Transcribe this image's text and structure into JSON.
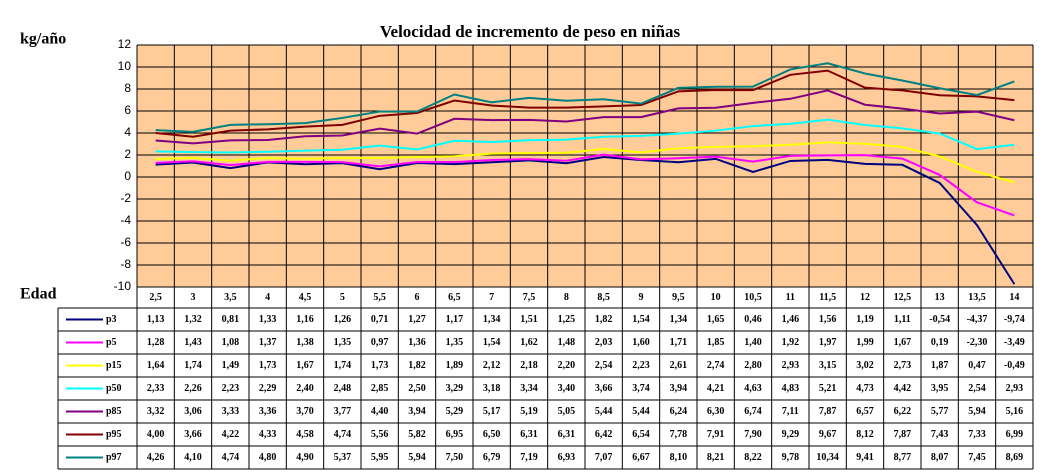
{
  "chart_data": {
    "type": "line",
    "title": "Velocidad de incremento de peso en niñas",
    "y_label": "kg/año",
    "x_label": "Edad",
    "categories": [
      "2,5",
      "3",
      "3,5",
      "4",
      "4,5",
      "5",
      "5,5",
      "6",
      "6,5",
      "7",
      "7,5",
      "8",
      "8,5",
      "9",
      "9,5",
      "10",
      "10,5",
      "11",
      "11,5",
      "12",
      "12,5",
      "13",
      "13,5",
      "14"
    ],
    "series": [
      {
        "name": "p3",
        "color": "#000080",
        "values": [
          1.13,
          1.32,
          0.81,
          1.33,
          1.16,
          1.26,
          0.71,
          1.27,
          1.17,
          1.34,
          1.51,
          1.25,
          1.82,
          1.54,
          1.34,
          1.65,
          0.46,
          1.46,
          1.56,
          1.19,
          1.11,
          -0.54,
          -4.37,
          -9.74
        ],
        "value_labels": [
          "1,13",
          "1,32",
          "0,81",
          "1,33",
          "1,16",
          "1,26",
          "0,71",
          "1,27",
          "1,17",
          "1,34",
          "1,51",
          "1,25",
          "1,82",
          "1,54",
          "1,34",
          "1,65",
          "0,46",
          "1,46",
          "1,56",
          "1,19",
          "1,11",
          "-0,54",
          "-4,37",
          "-9,74"
        ]
      },
      {
        "name": "p5",
        "color": "#ff00ff",
        "values": [
          1.28,
          1.43,
          1.08,
          1.37,
          1.38,
          1.35,
          0.97,
          1.36,
          1.35,
          1.54,
          1.62,
          1.48,
          2.03,
          1.6,
          1.71,
          1.85,
          1.4,
          1.92,
          1.97,
          1.99,
          1.67,
          0.19,
          -2.3,
          -3.49
        ],
        "value_labels": [
          "1,28",
          "1,43",
          "1,08",
          "1,37",
          "1,38",
          "1,35",
          "0,97",
          "1,36",
          "1,35",
          "1,54",
          "1,62",
          "1,48",
          "2,03",
          "1,60",
          "1,71",
          "1,85",
          "1,40",
          "1,92",
          "1,97",
          "1,99",
          "1,67",
          "0,19",
          "-2,30",
          "-3,49"
        ]
      },
      {
        "name": "p15",
        "color": "#ffff00",
        "values": [
          1.64,
          1.74,
          1.49,
          1.73,
          1.67,
          1.74,
          1.73,
          1.82,
          1.89,
          2.12,
          2.18,
          2.2,
          2.54,
          2.23,
          2.61,
          2.74,
          2.8,
          2.93,
          3.15,
          3.02,
          2.73,
          1.87,
          0.47,
          -0.49
        ],
        "value_labels": [
          "1,64",
          "1,74",
          "1,49",
          "1,73",
          "1,67",
          "1,74",
          "1,73",
          "1,82",
          "1,89",
          "2,12",
          "2,18",
          "2,20",
          "2,54",
          "2,23",
          "2,61",
          "2,74",
          "2,80",
          "2,93",
          "3,15",
          "3,02",
          "2,73",
          "1,87",
          "0,47",
          "-0,49"
        ]
      },
      {
        "name": "p50",
        "color": "#00ffff",
        "values": [
          2.33,
          2.26,
          2.23,
          2.29,
          2.4,
          2.48,
          2.85,
          2.5,
          3.29,
          3.18,
          3.34,
          3.4,
          3.66,
          3.74,
          3.94,
          4.21,
          4.63,
          4.83,
          5.21,
          4.73,
          4.42,
          3.95,
          2.54,
          2.93
        ],
        "value_labels": [
          "2,33",
          "2,26",
          "2,23",
          "2,29",
          "2,40",
          "2,48",
          "2,85",
          "2,50",
          "3,29",
          "3,18",
          "3,34",
          "3,40",
          "3,66",
          "3,74",
          "3,94",
          "4,21",
          "4,63",
          "4,83",
          "5,21",
          "4,73",
          "4,42",
          "3,95",
          "2,54",
          "2,93"
        ]
      },
      {
        "name": "p85",
        "color": "#800080",
        "values": [
          3.32,
          3.06,
          3.33,
          3.36,
          3.7,
          3.77,
          4.4,
          3.94,
          5.29,
          5.17,
          5.19,
          5.05,
          5.44,
          5.44,
          6.24,
          6.3,
          6.74,
          7.11,
          7.87,
          6.57,
          6.22,
          5.77,
          5.94,
          5.16
        ],
        "value_labels": [
          "3,32",
          "3,06",
          "3,33",
          "3,36",
          "3,70",
          "3,77",
          "4,40",
          "3,94",
          "5,29",
          "5,17",
          "5,19",
          "5,05",
          "5,44",
          "5,44",
          "6,24",
          "6,30",
          "6,74",
          "7,11",
          "7,87",
          "6,57",
          "6,22",
          "5,77",
          "5,94",
          "5,16"
        ]
      },
      {
        "name": "p95",
        "color": "#800000",
        "values": [
          4.0,
          3.66,
          4.22,
          4.33,
          4.58,
          4.74,
          5.56,
          5.82,
          6.95,
          6.5,
          6.31,
          6.31,
          6.42,
          6.54,
          7.78,
          7.91,
          7.9,
          9.29,
          9.67,
          8.12,
          7.87,
          7.43,
          7.33,
          6.99
        ],
        "value_labels": [
          "4,00",
          "3,66",
          "4,22",
          "4,33",
          "4,58",
          "4,74",
          "5,56",
          "5,82",
          "6,95",
          "6,50",
          "6,31",
          "6,31",
          "6,42",
          "6,54",
          "7,78",
          "7,91",
          "7,90",
          "9,29",
          "9,67",
          "8,12",
          "7,87",
          "7,43",
          "7,33",
          "6,99"
        ]
      },
      {
        "name": "p97",
        "color": "#008080",
        "values": [
          4.26,
          4.1,
          4.74,
          4.8,
          4.9,
          5.37,
          5.95,
          5.94,
          7.5,
          6.79,
          7.19,
          6.93,
          7.07,
          6.67,
          8.1,
          8.21,
          8.22,
          9.78,
          10.34,
          9.41,
          8.77,
          8.07,
          7.45,
          8.69
        ],
        "value_labels": [
          "4,26",
          "4,10",
          "4,74",
          "4,80",
          "4,90",
          "5,37",
          "5,95",
          "5,94",
          "7,50",
          "6,79",
          "7,19",
          "6,93",
          "7,07",
          "6,67",
          "8,10",
          "8,21",
          "8,22",
          "9,78",
          "10,34",
          "9,41",
          "8,77",
          "8,07",
          "7,45",
          "8,69"
        ]
      }
    ],
    "ylim": [
      -10,
      12
    ],
    "yticks": [
      -10,
      -8,
      -6,
      -4,
      -2,
      0,
      2,
      4,
      6,
      8,
      10,
      12
    ],
    "grid": true,
    "plot_background": "#ffcc99"
  }
}
